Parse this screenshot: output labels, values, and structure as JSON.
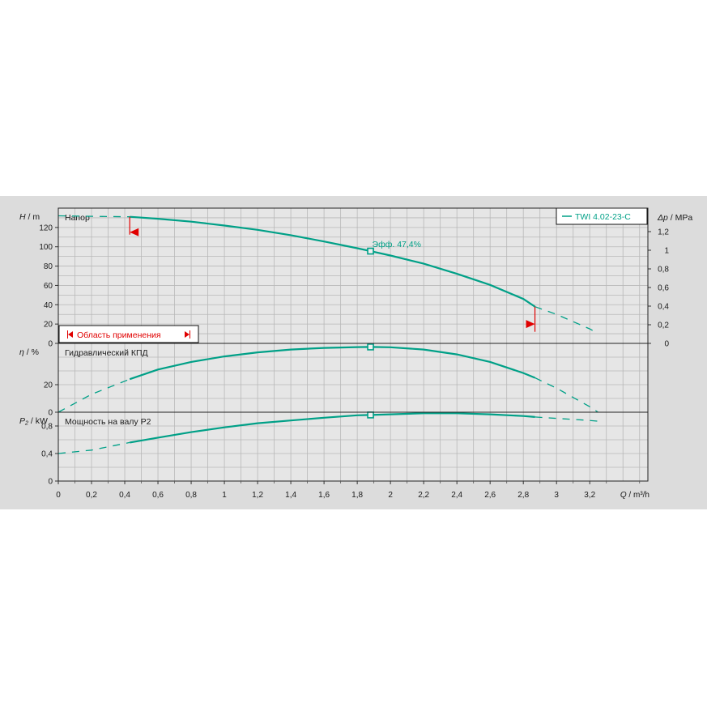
{
  "chart_data": {
    "type": "line",
    "colors": {
      "curve": "#00a087",
      "range": "#e00000",
      "grid": "#b8b8b8",
      "plot_bg": "#e6e6e6"
    },
    "legend": {
      "label": "TWI 4.02-23-C",
      "position": "top-right"
    },
    "x_axis": {
      "label_var": "Q",
      "label_unit": "m³/h",
      "range": [
        0,
        3.55
      ],
      "ticks": [
        "0",
        "0,2",
        "0,4",
        "0,6",
        "0,8",
        "1",
        "1,2",
        "1,4",
        "1,6",
        "1,8",
        "2",
        "2,2",
        "2,4",
        "2,6",
        "2,8",
        "3",
        "3,2"
      ],
      "tick_values": [
        0,
        0.2,
        0.4,
        0.6,
        0.8,
        1,
        1.2,
        1.4,
        1.6,
        1.8,
        2,
        2.2,
        2.4,
        2.6,
        2.8,
        3,
        3.2
      ]
    },
    "operating_point": {
      "q": 1.88,
      "efficiency_label": "Эфф.  47,4%"
    },
    "application_range": {
      "label": "Область применения",
      "q_min": 0.43,
      "q_max": 2.87
    },
    "panels": [
      {
        "name": "head",
        "title": "Напор",
        "ylabel_var": "H",
        "ylabel_unit": "m",
        "ylim": [
          0,
          140
        ],
        "ytick_values": [
          0,
          20,
          40,
          60,
          80,
          100,
          120
        ],
        "yticks": [
          "0",
          "20",
          "40",
          "60",
          "80",
          "100",
          "120"
        ],
        "y2label_var": "Δp",
        "y2label_unit": "MPa",
        "y2ticks": [
          "0",
          "0,2",
          "0,4",
          "0,6",
          "0,8",
          "1",
          "1,2"
        ],
        "x": [
          0,
          0.2,
          0.43,
          0.6,
          0.8,
          1.0,
          1.2,
          1.4,
          1.6,
          1.8,
          1.88,
          2.0,
          2.2,
          2.4,
          2.6,
          2.8,
          2.87,
          3.0,
          3.2,
          3.25
        ],
        "y": [
          132,
          131.5,
          131,
          129,
          126,
          122,
          117.5,
          112,
          105.5,
          98.5,
          95.5,
          91,
          82.5,
          72,
          60.5,
          46,
          38,
          30,
          15,
          10
        ]
      },
      {
        "name": "efficiency",
        "title": "Гидравлический КПД",
        "ylabel_var": "η",
        "ylabel_unit": "%",
        "ylim": [
          0,
          50
        ],
        "ytick_values": [
          0,
          20
        ],
        "yticks": [
          "0",
          "20"
        ],
        "x": [
          0,
          0.2,
          0.43,
          0.6,
          0.8,
          1.0,
          1.2,
          1.4,
          1.6,
          1.8,
          1.88,
          2.0,
          2.2,
          2.4,
          2.6,
          2.8,
          2.87,
          3.0,
          3.2,
          3.25
        ],
        "y": [
          0,
          13,
          24,
          31,
          36.5,
          40.5,
          43.5,
          45.5,
          46.7,
          47.3,
          47.4,
          47.2,
          45.5,
          42,
          36.5,
          28.5,
          25,
          17.5,
          4,
          0
        ]
      },
      {
        "name": "power",
        "title": "Мощность на валу P2",
        "ylabel_var": "P₂",
        "ylabel_unit": "kW",
        "ylim": [
          0,
          1.0
        ],
        "ytick_values": [
          0,
          0.4,
          0.8
        ],
        "yticks": [
          "0",
          "0,4",
          "0,8"
        ],
        "x": [
          0,
          0.2,
          0.43,
          0.6,
          0.8,
          1.0,
          1.2,
          1.4,
          1.6,
          1.8,
          1.88,
          2.0,
          2.2,
          2.4,
          2.6,
          2.8,
          2.87,
          3.0,
          3.2,
          3.25
        ],
        "y": [
          0.4,
          0.45,
          0.56,
          0.63,
          0.71,
          0.78,
          0.84,
          0.88,
          0.92,
          0.955,
          0.96,
          0.97,
          0.985,
          0.985,
          0.97,
          0.945,
          0.93,
          0.91,
          0.88,
          0.87
        ]
      }
    ]
  }
}
